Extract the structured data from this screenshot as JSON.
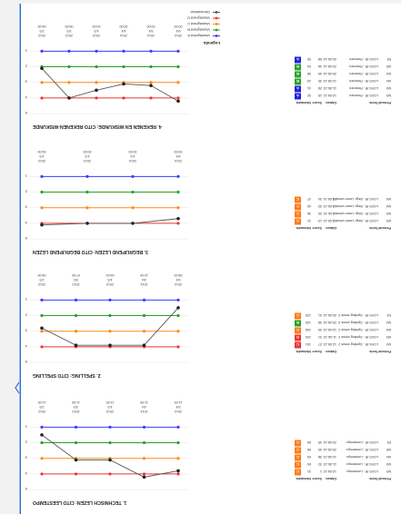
{
  "legend": {
    "title": "Legenda",
    "items": [
      {
        "label": "Vaardigheid A",
        "color": "#3b3bff"
      },
      {
        "label": "Vaardigheid B",
        "color": "#2aa02a"
      },
      {
        "label": "Vaardigheid C",
        "color": "#ff8a1a"
      },
      {
        "label": "Vaardigheid D",
        "color": "#ee3333"
      },
      {
        "label": "Gemiddelde",
        "color": "#555555"
      }
    ]
  },
  "table_headers": [
    "Periode",
    "Toets",
    "Datum",
    "Score",
    "Niveau",
    "Nr.",
    ""
  ],
  "chart_data": [
    {
      "type": "line",
      "title": "1. TECHNISCH LEZEN: CITO LEESTEMPO",
      "x": [
        "1",
        "2",
        "3",
        "4",
        "5"
      ],
      "top_labels": [
        [
          "2012",
          "2/3",
          "11:00"
        ],
        [
          "2013",
          "3/3",
          "11:00"
        ],
        [
          "2013",
          "4/3",
          "11:00"
        ],
        [
          "2014",
          "4/4",
          "11:00"
        ],
        [
          "2014",
          "5/4",
          "11:00"
        ]
      ],
      "yticks": [
        "1",
        "2",
        "3",
        "4",
        "5"
      ],
      "bands": [
        1,
        2,
        3,
        4
      ],
      "series": [
        {
          "name": "Leerling",
          "values": [
            0.5,
            2.1,
            2.1,
            3.2,
            2.8
          ]
        }
      ],
      "rows": [
        {
          "periode": "M3",
          "toets": "LOVS IR - Leestempo",
          "datum": "12-06-12",
          "score": "1",
          "niveau": "31",
          "nr": "C",
          "badge": "#ff7a1a"
        },
        {
          "periode": "M3",
          "toets": "LOVS IR - Leestempo",
          "datum": "11-06-13",
          "score": "32",
          "niveau": "60",
          "nr": "C",
          "badge": "#ff7a1a"
        },
        {
          "periode": "M4",
          "toets": "LOVS IR - Leestempo",
          "datum": "12-06-13",
          "score": "38",
          "niveau": "63",
          "nr": "C",
          "badge": "#ff7a1a"
        },
        {
          "periode": "M5",
          "toets": "LOVS IR - Leestempo",
          "datum": "25-06-14",
          "score": "40",
          "niveau": "66",
          "nr": "C",
          "badge": "#ff7a1a"
        },
        {
          "periode": "E5",
          "toets": "LOVS IR - Leestempo",
          "datum": "22-06-14",
          "score": "39",
          "niveau": "69",
          "nr": "C",
          "badge": "#ff7a1a"
        }
      ]
    },
    {
      "type": "line",
      "title": "2. SPELLING: CITO SPELLING",
      "x": [
        "1",
        "2",
        "3",
        "4",
        "5"
      ],
      "top_labels": [
        [
          "2012",
          "2/3",
          "06:00"
        ],
        [
          "2013",
          "3/3",
          "07:00"
        ],
        [
          "2013",
          "4/3",
          "06:00"
        ],
        [
          "2014",
          "4/4",
          "12:00"
        ],
        [
          "2014",
          "5/4",
          "08:00"
        ]
      ],
      "yticks": [
        "1",
        "2",
        "3",
        "4",
        "5"
      ],
      "bands": [
        1,
        2,
        3,
        4
      ],
      "series": [
        {
          "name": "Leerling",
          "values": [
            1.8,
            2.9,
            2.9,
            2.9,
            0.5
          ]
        }
      ],
      "rows": [
        {
          "periode": "M3",
          "toets": "LOVS IR - Spelling versie 2",
          "datum": "12-06-12",
          "score": "27",
          "niveau": "101",
          "nr": "C",
          "badge": "#ee3333"
        },
        {
          "periode": "M3",
          "toets": "LOVS IR - Spelling versie 2",
          "datum": "11-06-13",
          "score": "31",
          "niveau": "105",
          "nr": "D",
          "badge": "#ee3333"
        },
        {
          "periode": "M4",
          "toets": "LOVS IR - Spelling versie 2",
          "datum": "12-06-13",
          "score": "30",
          "niveau": "108",
          "nr": "C",
          "badge": "#ff7a1a"
        },
        {
          "periode": "M4",
          "toets": "LOVS IR - Spelling versie 2",
          "datum": "25-06-14",
          "score": "38",
          "niveau": "120",
          "nr": "B",
          "badge": "#2aa02a"
        },
        {
          "periode": "E4",
          "toets": "LOVS IR - Spelling versie 2",
          "datum": "20-06-14",
          "score": "31",
          "niveau": "125",
          "nr": "C",
          "badge": "#ff7a1a"
        }
      ]
    },
    {
      "type": "line",
      "title": "3. BEGRIJPEND LEZEN: CITO BEGRIJPEND LEZEN",
      "x": [
        "1",
        "2",
        "3",
        "4"
      ],
      "top_labels": [
        [
          "2012",
          "2/3",
          "06:00"
        ],
        [
          "2013",
          "4/3",
          "00:00"
        ],
        [
          "2013",
          "4/3",
          "00:00"
        ],
        [
          "2014",
          "5/4",
          "09:00"
        ]
      ],
      "yticks": [
        "1",
        "2",
        "3",
        "4",
        "5"
      ],
      "bands": [
        1,
        2,
        3,
        4
      ],
      "series": [
        {
          "name": "Leerling",
          "values": [
            3.1,
            3.0,
            3.0,
            2.7
          ]
        }
      ],
      "rows": [
        {
          "periode": "M3",
          "toets": "LOVS IR - Begr. Lezen versie 2",
          "datum": "12-06-12",
          "score": "13",
          "niveau": "31",
          "nr": "C",
          "badge": "#ff7a1a"
        },
        {
          "periode": "M3",
          "toets": "LOVS IR - Begr. Lezen versie 2",
          "datum": "11-06-13",
          "score": "20",
          "niveau": "36",
          "nr": "C",
          "badge": "#ff7a1a"
        },
        {
          "periode": "M4",
          "toets": "LOVS IR - Begr. Lezen versie 2",
          "datum": "12-06-13",
          "score": "32",
          "niveau": "42",
          "nr": "C",
          "badge": "#ff7a1a"
        },
        {
          "periode": "M4",
          "toets": "LOVS IR - Begr. Lezen versie 2",
          "datum": "25-06-14",
          "score": "34",
          "niveau": "47",
          "nr": "C",
          "badge": "#ff7a1a"
        }
      ]
    },
    {
      "type": "line",
      "title": "4. REKENEN EN WISKUNDE: CITO REKENEN-WISKUNDE",
      "x": [
        "1",
        "2",
        "3",
        "4",
        "5",
        "6"
      ],
      "top_labels": [
        [
          "2012",
          "2/3",
          "06:00"
        ],
        [
          "2013",
          "3/3",
          "06:00"
        ],
        [
          "2013",
          "4/3",
          "00:00"
        ],
        [
          "2014",
          "4/4",
          "00:00"
        ],
        [
          "2014",
          "5/4",
          "00:00"
        ],
        [
          "2014",
          "6/4",
          "00:00"
        ]
      ],
      "yticks": [
        "1",
        "2",
        "3",
        "4",
        "5"
      ],
      "bands": [
        1,
        2,
        3,
        4
      ],
      "series": [
        {
          "name": "Leerling",
          "values": [
            1.1,
            3.0,
            2.5,
            2.1,
            2.2,
            3.2
          ]
        }
      ],
      "rows": [
        {
          "periode": "M3",
          "toets": "LOVS IR - Rekenen",
          "datum": "12-06-12",
          "score": "19",
          "niveau": "32",
          "nr": "A",
          "badge": "#2222dd"
        },
        {
          "periode": "M3",
          "toets": "LOVS IR - Rekenen",
          "datum": "11-06-13",
          "score": "28",
          "niveau": "41",
          "nr": "A",
          "badge": "#2222dd"
        },
        {
          "periode": "M4",
          "toets": "LOVS IR - Rekenen",
          "datum": "12-06-13",
          "score": "30",
          "niveau": "43",
          "nr": "B",
          "badge": "#2aa02a"
        },
        {
          "periode": "M4",
          "toets": "LOVS IR - Rekenen",
          "datum": "25-06-14",
          "score": "45",
          "niveau": "58",
          "nr": "B",
          "badge": "#2aa02a"
        },
        {
          "periode": "M5",
          "toets": "LOVS IR - Rekenen",
          "datum": "22-06-14",
          "score": "46",
          "niveau": "54",
          "nr": "B",
          "badge": "#2aa02a"
        },
        {
          "periode": "E5",
          "toets": "LOVS IR - Rekenen",
          "datum": "20-06-14",
          "score": "58",
          "niveau": "55",
          "nr": "A",
          "badge": "#2222dd"
        }
      ]
    }
  ]
}
